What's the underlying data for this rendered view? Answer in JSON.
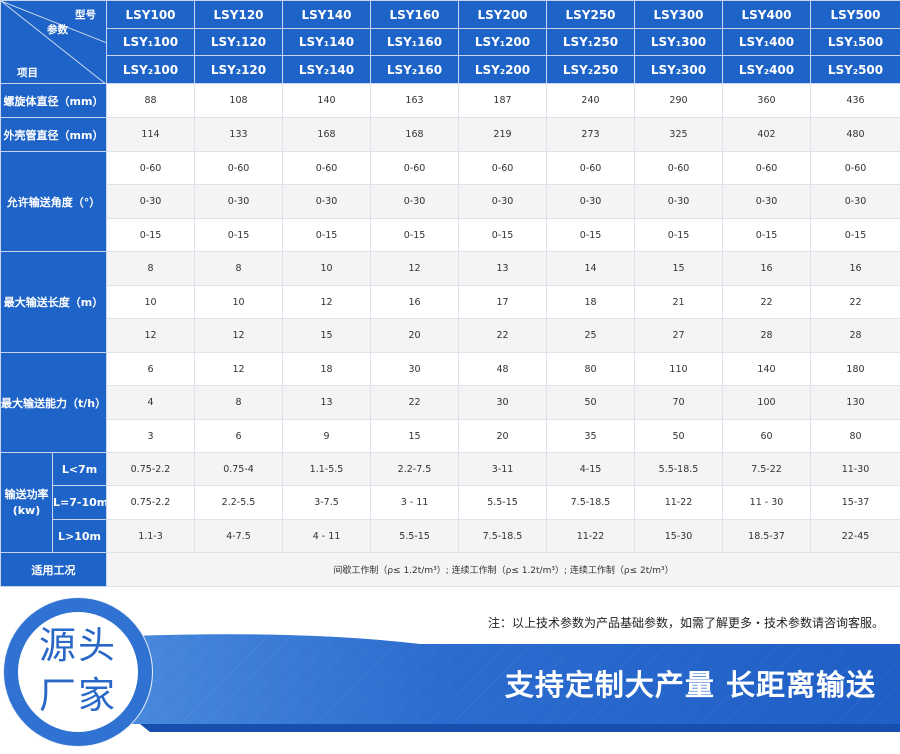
{
  "header": {
    "corner": {
      "model": "型号",
      "params": "参数",
      "item": "项目"
    },
    "model_rows": [
      [
        "LSY100",
        "LSY120",
        "LSY140",
        "LSY160",
        "LSY200",
        "LSY250",
        "LSY300",
        "LSY400",
        "LSY500"
      ],
      [
        "LSY₁100",
        "LSY₁120",
        "LSY₁140",
        "LSY₁160",
        "LSY₁200",
        "LSY₁250",
        "LSY₁300",
        "LSY₁400",
        "LSY₁500"
      ],
      [
        "LSY₂100",
        "LSY₂120",
        "LSY₂140",
        "LSY₂160",
        "LSY₂200",
        "LSY₂250",
        "LSY₂300",
        "LSY₂400",
        "LSY₂500"
      ]
    ]
  },
  "rows": {
    "screw_diameter": {
      "label": "螺旋体直径（mm）",
      "values": [
        "88",
        "108",
        "140",
        "163",
        "187",
        "240",
        "290",
        "360",
        "436"
      ]
    },
    "shell_diameter": {
      "label": "外壳管直径（mm）",
      "values": [
        "114",
        "133",
        "168",
        "168",
        "219",
        "273",
        "325",
        "402",
        "480"
      ]
    },
    "angle": {
      "label": "允许输送角度（°）",
      "values": [
        [
          "0-60",
          "0-60",
          "0-60",
          "0-60",
          "0-60",
          "0-60",
          "0-60",
          "0-60",
          "0-60"
        ],
        [
          "0-30",
          "0-30",
          "0-30",
          "0-30",
          "0-30",
          "0-30",
          "0-30",
          "0-30",
          "0-30"
        ],
        [
          "0-15",
          "0-15",
          "0-15",
          "0-15",
          "0-15",
          "0-15",
          "0-15",
          "0-15",
          "0-15"
        ]
      ]
    },
    "max_length": {
      "label": "最大输送长度（m）",
      "values": [
        [
          "8",
          "8",
          "10",
          "12",
          "13",
          "14",
          "15",
          "16",
          "16"
        ],
        [
          "10",
          "10",
          "12",
          "16",
          "17",
          "18",
          "21",
          "22",
          "22"
        ],
        [
          "12",
          "12",
          "15",
          "20",
          "22",
          "25",
          "27",
          "28",
          "28"
        ]
      ]
    },
    "max_capacity": {
      "label": "最大输送能力（t/h）",
      "values": [
        [
          "6",
          "12",
          "18",
          "30",
          "48",
          "80",
          "110",
          "140",
          "180"
        ],
        [
          "4",
          "8",
          "13",
          "22",
          "30",
          "50",
          "70",
          "100",
          "130"
        ],
        [
          "3",
          "6",
          "9",
          "15",
          "20",
          "35",
          "50",
          "60",
          "80"
        ]
      ]
    },
    "power": {
      "label": "输送功率",
      "unit": "(kw)",
      "sub_labels": [
        "L<7m",
        "L=7-10m",
        "L>10m"
      ],
      "values": [
        [
          "0.75-2.2",
          "0.75-4",
          "1.1-5.5",
          "2.2-7.5",
          "3-11",
          "4-15",
          "5.5-18.5",
          "7.5-22",
          "11-30"
        ],
        [
          "0.75-2.2",
          "2.2-5.5",
          "3-7.5",
          "3 - 11",
          "5.5-15",
          "7.5-18.5",
          "11-22",
          "11 - 30",
          "15-37"
        ],
        [
          "1.1-3",
          "4-7.5",
          "4 - 11",
          "5.5-15",
          "7.5-18.5",
          "11-22",
          "15-30",
          "18.5-37",
          "22-45"
        ]
      ]
    },
    "conditions": {
      "label": "适用工况",
      "text": "间歇工作制（ρ≤ 1.2t/m³）; 连续工作制（ρ≤ 1.2t/m³）; 连续工作制（ρ≤ 2t/m³）"
    }
  },
  "note": "注：以上技术参数为产品基础参数，如需了解更多・技术参数请咨询客服。",
  "badge": {
    "line1": "源头",
    "line2": "厂家"
  },
  "slogan": "支持定制大产量 长距离输送",
  "colors": {
    "header_blue": "#1e63c7",
    "banner_blue": "#1f5fc4",
    "banner_light": "#4a8fe0"
  }
}
